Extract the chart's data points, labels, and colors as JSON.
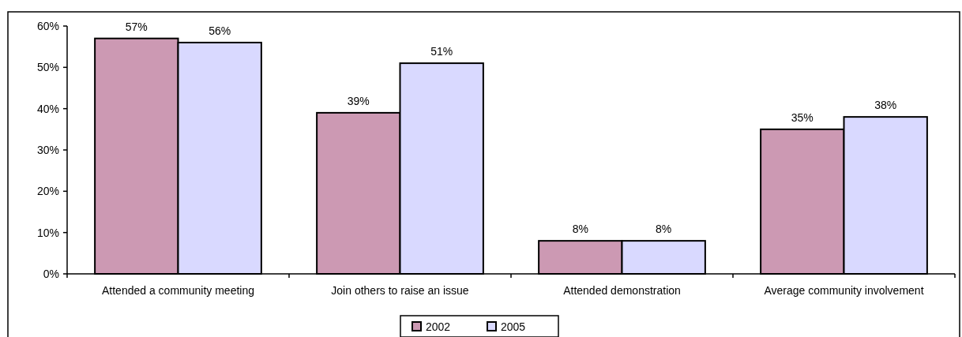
{
  "chart_data": {
    "type": "bar",
    "categories": [
      "Attended a community meeting",
      "Join others to raise an issue",
      "Attended demonstration",
      "Average community involvement"
    ],
    "series": [
      {
        "name": "2002",
        "color": "#cc99b3",
        "values": [
          57,
          39,
          8,
          35
        ],
        "value_labels": [
          "57%",
          "39%",
          "8%",
          "35%"
        ]
      },
      {
        "name": "2005",
        "color": "#d9d9ff",
        "values": [
          56,
          51,
          8,
          38
        ],
        "value_labels": [
          "56%",
          "51%",
          "8%",
          "38%"
        ]
      }
    ],
    "ylim": [
      0,
      60
    ],
    "yticks": [
      {
        "value": 0,
        "label": "0%"
      },
      {
        "value": 10,
        "label": "10%"
      },
      {
        "value": 20,
        "label": "20%"
      },
      {
        "value": 30,
        "label": "30%"
      },
      {
        "value": 40,
        "label": "40%"
      },
      {
        "value": 50,
        "label": "50%"
      },
      {
        "value": 60,
        "label": "60%"
      }
    ],
    "legend": "bottom",
    "grid": false
  }
}
